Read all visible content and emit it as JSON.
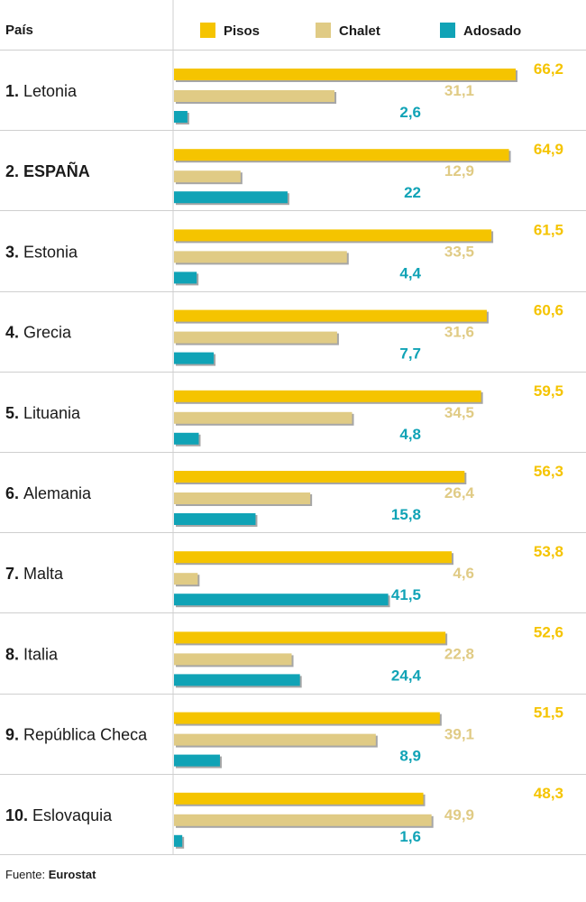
{
  "header": {
    "country_col": "País"
  },
  "legend": [
    {
      "name": "Pisos",
      "color": "#f5c400"
    },
    {
      "name": "Chalet",
      "color": "#e0cb85"
    },
    {
      "name": "Adosado",
      "color": "#10a3b6"
    }
  ],
  "chart_data": {
    "type": "bar",
    "orientation": "horizontal",
    "categories": [
      "Letonia",
      "ESPAÑA",
      "Estonia",
      "Grecia",
      "Lituania",
      "Alemania",
      "Malta",
      "Italia",
      "República Checa",
      "Eslovaquia"
    ],
    "ranks": [
      "1.",
      "2.",
      "3.",
      "4.",
      "5.",
      "6.",
      "7.",
      "8.",
      "9.",
      "10."
    ],
    "highlight": "ESPAÑA",
    "series": [
      {
        "name": "Pisos",
        "color": "#f5c400",
        "values": [
          66.2,
          64.9,
          61.5,
          60.6,
          59.5,
          56.3,
          53.8,
          52.6,
          51.5,
          48.3
        ],
        "labels": [
          "66,2",
          "64,9",
          "61,5",
          "60,6",
          "59,5",
          "56,3",
          "53,8",
          "52,6",
          "51,5",
          "48,3"
        ]
      },
      {
        "name": "Chalet",
        "color": "#e0cb85",
        "values": [
          31.1,
          12.9,
          33.5,
          31.6,
          34.5,
          26.4,
          4.6,
          22.8,
          39.1,
          49.9
        ],
        "labels": [
          "31,1",
          "12,9",
          "33,5",
          "31,6",
          "34,5",
          "26,4",
          "4,6",
          "22,8",
          "39,1",
          "49,9"
        ]
      },
      {
        "name": "Adosado",
        "color": "#10a3b6",
        "values": [
          2.6,
          22,
          4.4,
          7.7,
          4.8,
          15.8,
          41.5,
          24.4,
          8.9,
          1.6
        ],
        "labels": [
          "2,6",
          "22",
          "4,4",
          "7,7",
          "4,8",
          "15,8",
          "41,5",
          "24,4",
          "8,9",
          "1,6"
        ]
      }
    ],
    "xlim": [
      0,
      67
    ],
    "grid": false,
    "legend_position": "top"
  },
  "footer": {
    "prefix": "Fuente: ",
    "source": "Eurostat"
  }
}
